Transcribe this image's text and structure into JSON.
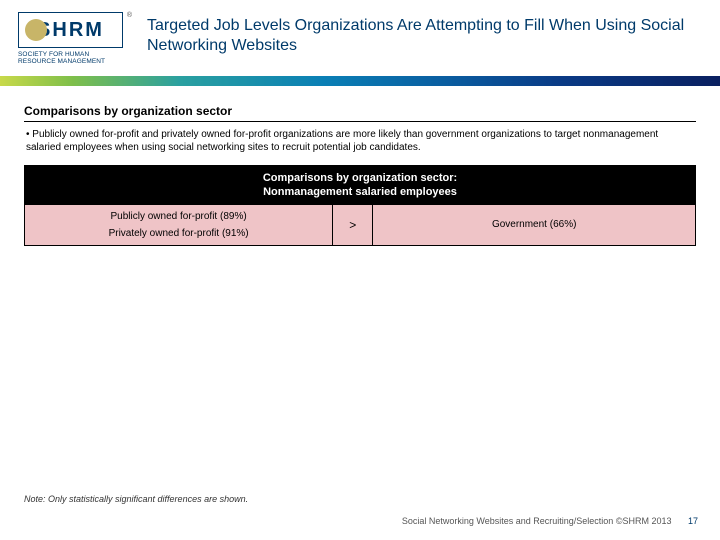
{
  "logo": {
    "text": "SHRM",
    "tagline": "SOCIETY FOR HUMAN\nRESOURCE MANAGEMENT",
    "registered": "®"
  },
  "title": "Targeted Job Levels Organizations Are Attempting to Fill When Using Social Networking Websites",
  "section_heading": "Comparisons by organization sector",
  "bullet": "• Publicly owned for-profit and privately owned for-profit organizations are more likely than government organizations to target nonmanagement salaried employees when using social networking sites to recruit potential job candidates.",
  "comparison": {
    "header_line1": "Comparisons by organization sector:",
    "header_line2": "Nonmanagement salaried employees",
    "left_items": [
      "Publicly owned for-profit (89%)",
      "Privately owned for-profit (91%)"
    ],
    "operator": ">",
    "right": "Government (66%)",
    "colors": {
      "header_bg": "#000000",
      "header_text": "#ffffff",
      "row_bg": "#efc4c7",
      "border": "#000000"
    }
  },
  "note": "Note: Only statistically significant differences are shown.",
  "footer": {
    "text": "Social Networking Websites and Recruiting/Selection ©SHRM 2013",
    "page": "17"
  },
  "gradient_colors": [
    "#c8d94a",
    "#7fbf4a",
    "#2aa0a0",
    "#0a7fb5",
    "#0a5da0",
    "#0a3a85",
    "#0a2060"
  ]
}
